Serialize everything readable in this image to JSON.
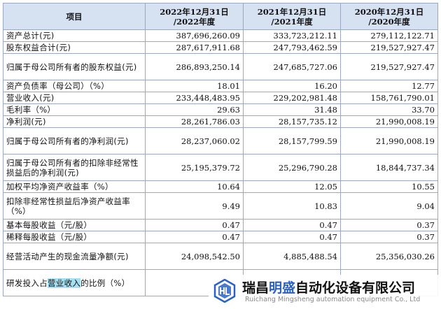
{
  "header": {
    "item": "项目",
    "c1": "2022年12月31日\n/2022年度",
    "c2": "2021年12月31日\n/2021年度",
    "c3": "2020年12月31日\n/2020年度"
  },
  "rows": [
    {
      "label": "资产总计(元)",
      "v": [
        "387,696,260.09",
        "333,723,212.11",
        "279,112,122.71"
      ]
    },
    {
      "label": "股东权益合计(元)",
      "v": [
        "287,617,911.68",
        "247,793,462.59",
        "219,527,927.47"
      ]
    },
    {
      "label": "归属于母公司所有者的股东权益(元)",
      "v": [
        "286,893,250.14",
        "247,685,727.06",
        "219,527,927.47"
      ]
    },
    {
      "label": "资产负债率（母公司）（%）",
      "v": [
        "18.01",
        "16.20",
        "12.77"
      ]
    },
    {
      "label": "营业收入(元)",
      "v": [
        "233,448,483.95",
        "229,202,981.48",
        "158,761,790.01"
      ]
    },
    {
      "label": "毛利率（%）",
      "v": [
        "29.63",
        "31.48",
        "33.70"
      ]
    },
    {
      "label": "净利润(元)",
      "v": [
        "28,261,786.03",
        "28,157,735.12",
        "21,990,008.19"
      ]
    },
    {
      "label": "归属于母公司所有者的净利润(元)",
      "v": [
        "28,237,060.02",
        "28,157,799.59",
        "21,990,008.19"
      ]
    },
    {
      "label": "归属于母公司所有者的扣除非经常性损益后的净利润(元)",
      "v": [
        "25,195,379.72",
        "25,296,790.28",
        "18,844,737.34"
      ]
    },
    {
      "label": "加权平均净资产收益率（%）",
      "v": [
        "10.64",
        "12.05",
        "10.55"
      ]
    },
    {
      "label": "扣除非经常性损益后净资产收益率（%）",
      "v": [
        "9.49",
        "10.83",
        "9.04"
      ]
    },
    {
      "label": "基本每股收益（元/股）",
      "v": [
        "0.47",
        "0.47",
        "0.37"
      ]
    },
    {
      "label": "稀释每股收益（元/股）",
      "v": [
        "0.47",
        "0.47",
        "0.37"
      ]
    },
    {
      "label": "经营活动产生的现金流量净额(元)",
      "v": [
        "24,098,542.50",
        "4,885,488.54",
        "25,356,030.26"
      ]
    }
  ],
  "last_row": {
    "label_pre": "研发投入占",
    "label_hl": "营业收入",
    "label_post": "的比例（%）"
  },
  "watermark": {
    "name_a": "瑞昌",
    "name_b": "明盛",
    "name_c": "自动化设备有限公司",
    "sub": "Ruichang Mingsheng automation equipment Co., Ltd",
    "logo_color": "#2a62c4"
  }
}
